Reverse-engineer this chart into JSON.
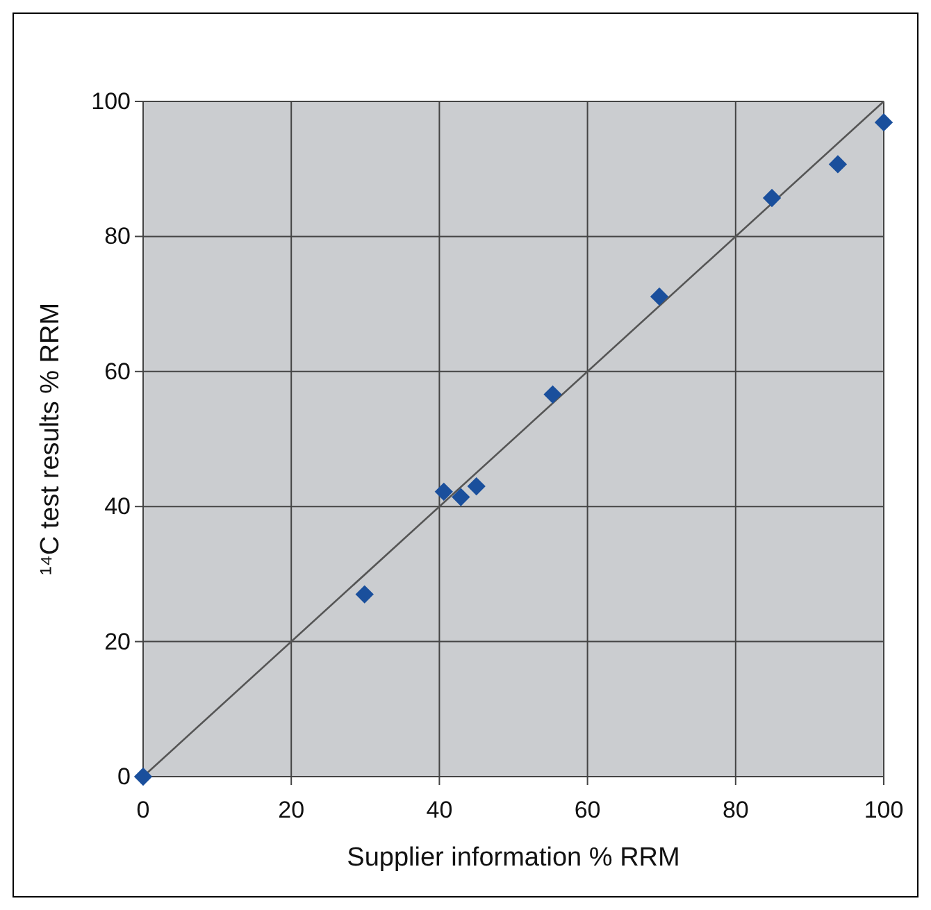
{
  "chart_data": {
    "type": "scatter",
    "xlabel": "Supplier information % RRM",
    "ylabel": "¹⁴C test results % RRM",
    "xlim": [
      0,
      100
    ],
    "ylim": [
      0,
      100
    ],
    "xticks": [
      0,
      20,
      40,
      60,
      80,
      100
    ],
    "yticks": [
      0,
      20,
      40,
      60,
      80,
      100
    ],
    "grid": true,
    "marker": "diamond",
    "series": [
      {
        "type": "line",
        "color": "#555555",
        "marker": "none",
        "x": [
          0,
          100
        ],
        "values": [
          0,
          100
        ]
      },
      {
        "color": "#1a4f9c",
        "x": [
          0,
          29.9,
          40.6,
          42.9,
          45.0,
          55.3,
          69.7,
          84.9,
          93.8,
          100
        ],
        "values": [
          0,
          27.0,
          42.2,
          41.4,
          43.0,
          56.6,
          71.1,
          85.7,
          90.7,
          96.9
        ]
      }
    ]
  }
}
